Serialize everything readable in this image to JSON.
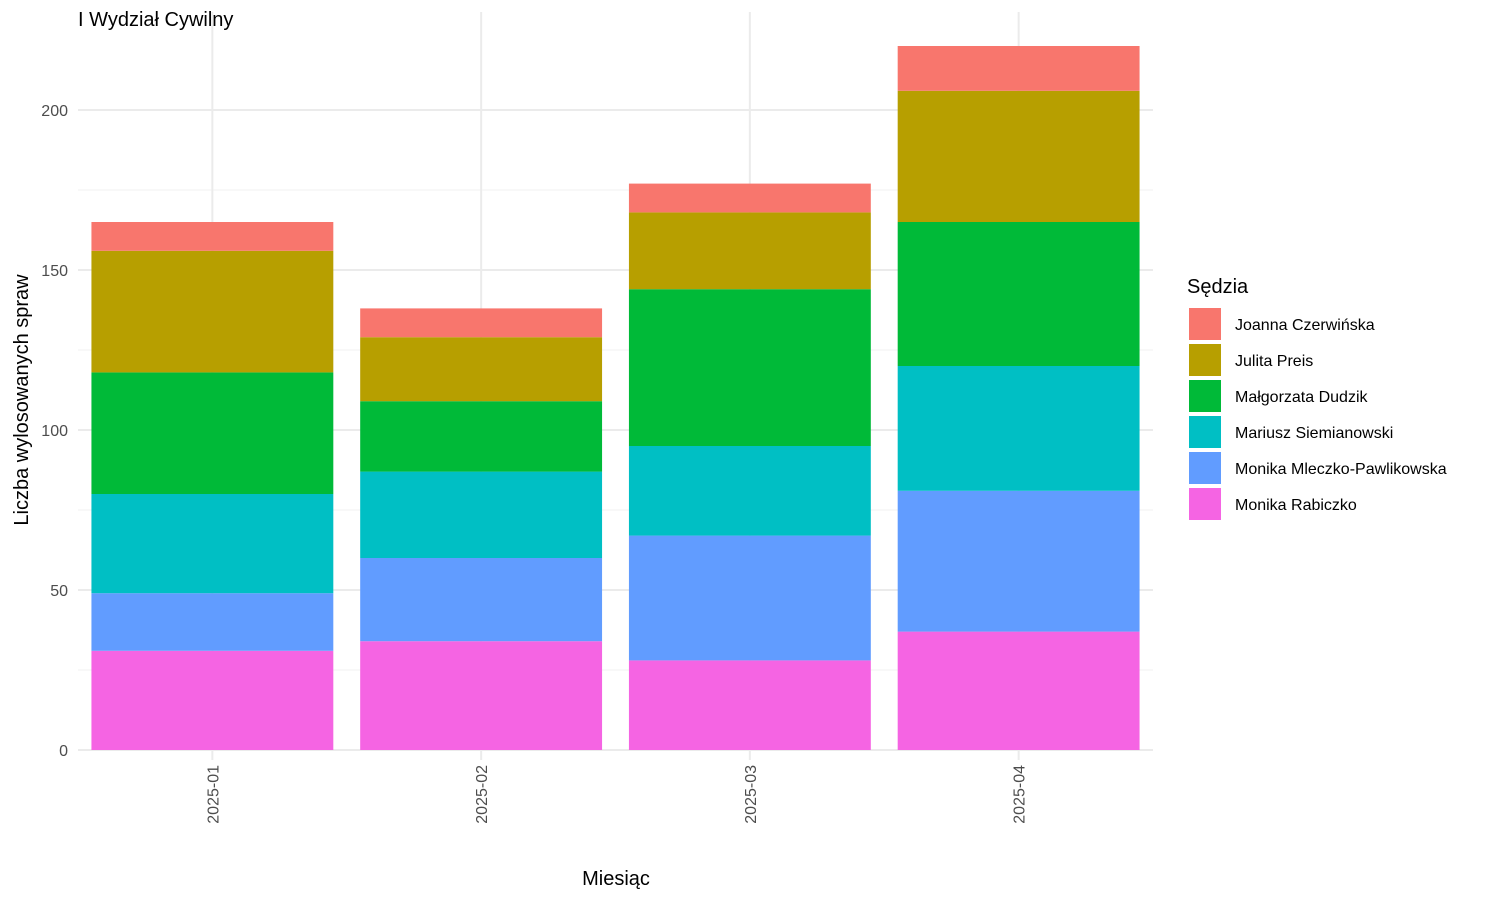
{
  "chart_data": {
    "type": "bar",
    "stacked": true,
    "title": "I Wydział Cywilny",
    "xlabel": "Miesiąc",
    "ylabel": "Liczba wylosowanych spraw",
    "categories": [
      "2025-01",
      "2025-02",
      "2025-03",
      "2025-04"
    ],
    "ylim": [
      0,
      220
    ],
    "yticks": [
      0,
      50,
      100,
      150,
      200
    ],
    "grid": true,
    "legend": {
      "title": "Sędzia",
      "position": "right"
    },
    "series": [
      {
        "name": "Monika Rabiczko",
        "color": "#F564E3",
        "values": [
          31,
          34,
          28,
          37
        ]
      },
      {
        "name": "Monika Mleczko-Pawlikowska",
        "color": "#619CFF",
        "values": [
          18,
          26,
          39,
          44
        ]
      },
      {
        "name": "Mariusz Siemianowski",
        "color": "#00BFC4",
        "values": [
          31,
          27,
          28,
          39
        ]
      },
      {
        "name": "Małgorzata Dudzik",
        "color": "#00BA38",
        "values": [
          38,
          22,
          49,
          45
        ]
      },
      {
        "name": "Julita Preis",
        "color": "#B79F00",
        "values": [
          38,
          20,
          24,
          41
        ]
      },
      {
        "name": "Joanna Czerwińska",
        "color": "#F8766D",
        "values": [
          9,
          9,
          9,
          14
        ]
      }
    ]
  }
}
